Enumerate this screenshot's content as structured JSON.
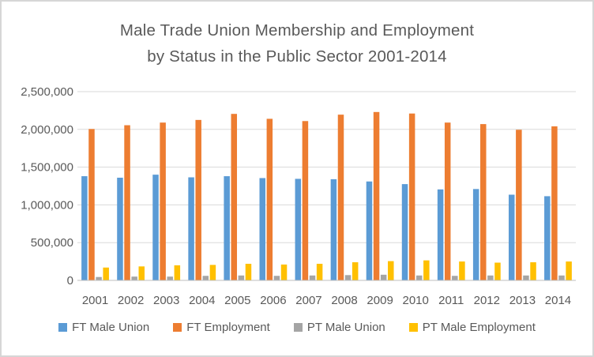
{
  "window": {
    "background": "#ffffff",
    "border_color": "#d6d6d6"
  },
  "chart_data": {
    "type": "bar",
    "title": "Male Trade Union Membership and Employment by Status in the Public Sector 2001-2014",
    "title_line1": "Male Trade Union Membership and Employment",
    "title_line2": "by Status in the Public Sector 2001-2014",
    "categories": [
      "2001",
      "2002",
      "2003",
      "2004",
      "2005",
      "2006",
      "2007",
      "2008",
      "2009",
      "2010",
      "2011",
      "2012",
      "2013",
      "2014"
    ],
    "series": [
      {
        "name": "FT Male Union",
        "color": "#5B9BD5",
        "values": [
          1380000,
          1360000,
          1400000,
          1365000,
          1380000,
          1355000,
          1345000,
          1340000,
          1310000,
          1275000,
          1205000,
          1210000,
          1135000,
          1115000
        ]
      },
      {
        "name": "FT Employment",
        "color": "#ED7D31",
        "values": [
          2005000,
          2055000,
          2090000,
          2125000,
          2205000,
          2140000,
          2110000,
          2195000,
          2230000,
          2210000,
          2090000,
          2070000,
          1995000,
          2040000
        ]
      },
      {
        "name": "PT Male Union",
        "color": "#A5A5A5",
        "values": [
          45000,
          50000,
          50000,
          60000,
          65000,
          60000,
          65000,
          70000,
          75000,
          65000,
          60000,
          65000,
          65000,
          65000
        ]
      },
      {
        "name": "PT Male Employment",
        "color": "#FFC000",
        "values": [
          170000,
          185000,
          200000,
          205000,
          220000,
          210000,
          220000,
          240000,
          255000,
          265000,
          250000,
          235000,
          240000,
          250000
        ]
      }
    ],
    "xlabel": "",
    "ylabel": "",
    "ylim": [
      0,
      2500000
    ],
    "ytick_step": 500000,
    "ytick_labels": [
      "0",
      "500,000",
      "1,000,000",
      "1,500,000",
      "2,000,000",
      "2,500,000"
    ],
    "grid": true,
    "legend_position": "bottom",
    "text_color": "#595959",
    "grid_color": "#d9d9d9",
    "axis_color": "#bfbfbf"
  }
}
